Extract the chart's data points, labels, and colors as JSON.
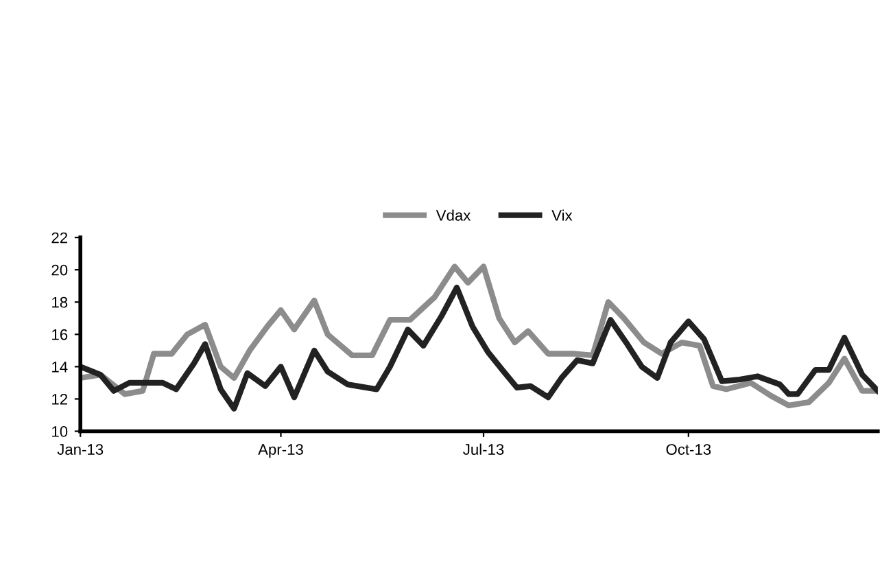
{
  "chart_data": {
    "type": "line",
    "legend": "top",
    "grid": false,
    "marker": "none",
    "line_style": "solid",
    "ylim": [
      10,
      22
    ],
    "yticks": [
      10,
      12,
      14,
      16,
      18,
      20,
      22
    ],
    "xlim": [
      "2013-01-01",
      "2013-12-25"
    ],
    "xticks": [
      {
        "value": "2013-01-01",
        "label": "Jan-13"
      },
      {
        "value": "2013-04-01",
        "label": "Apr-13"
      },
      {
        "value": "2013-07-01",
        "label": "Jul-13"
      },
      {
        "value": "2013-10-01",
        "label": "Oct-13"
      }
    ],
    "series": [
      {
        "name": "Vdax",
        "color": "#8c8c8c",
        "x": [
          "2013-01-01",
          "2013-01-10",
          "2013-01-21",
          "2013-01-29",
          "2013-02-03",
          "2013-02-11",
          "2013-02-18",
          "2013-02-26",
          "2013-03-05",
          "2013-03-11",
          "2013-03-18",
          "2013-03-26",
          "2013-04-01",
          "2013-04-07",
          "2013-04-16",
          "2013-04-22",
          "2013-05-03",
          "2013-05-12",
          "2013-05-20",
          "2013-05-29",
          "2013-06-09",
          "2013-06-18",
          "2013-06-24",
          "2013-07-01",
          "2013-07-08",
          "2013-07-15",
          "2013-07-21",
          "2013-07-30",
          "2013-08-11",
          "2013-08-19",
          "2013-08-26",
          "2013-09-02",
          "2013-09-11",
          "2013-09-19",
          "2013-09-28",
          "2013-10-06",
          "2013-10-12",
          "2013-10-18",
          "2013-10-29",
          "2013-11-07",
          "2013-11-15",
          "2013-11-24",
          "2013-12-03",
          "2013-12-10",
          "2013-12-18",
          "2013-12-25"
        ],
        "values": [
          13.3,
          13.5,
          12.3,
          12.5,
          14.8,
          14.8,
          16,
          16.6,
          14,
          13.3,
          15,
          16.5,
          17.5,
          16.3,
          18.1,
          16,
          14.7,
          14.7,
          16.9,
          16.9,
          18.3,
          20.2,
          19.2,
          20.2,
          17,
          15.5,
          16.2,
          14.8,
          14.8,
          14.7,
          18,
          17,
          15.5,
          14.8,
          15.5,
          15.3,
          12.8,
          12.6,
          13,
          12.2,
          11.6,
          11.8,
          13,
          14.5,
          12.5,
          12.5
        ]
      },
      {
        "name": "Vix",
        "color": "#222222",
        "x": [
          "2013-01-01",
          "2013-01-10",
          "2013-01-16",
          "2013-01-23",
          "2013-02-01",
          "2013-02-07",
          "2013-02-13",
          "2013-02-21",
          "2013-02-26",
          "2013-03-05",
          "2013-03-11",
          "2013-03-17",
          "2013-03-25",
          "2013-04-01",
          "2013-04-07",
          "2013-04-16",
          "2013-04-22",
          "2013-05-01",
          "2013-05-14",
          "2013-05-20",
          "2013-05-28",
          "2013-06-04",
          "2013-06-12",
          "2013-06-19",
          "2013-06-26",
          "2013-07-03",
          "2013-07-10",
          "2013-07-16",
          "2013-07-22",
          "2013-07-30",
          "2013-08-05",
          "2013-08-12",
          "2013-08-19",
          "2013-08-27",
          "2013-09-03",
          "2013-09-10",
          "2013-09-17",
          "2013-09-23",
          "2013-10-01",
          "2013-10-08",
          "2013-10-16",
          "2013-10-24",
          "2013-11-01",
          "2013-11-11",
          "2013-11-15",
          "2013-11-19",
          "2013-11-27",
          "2013-12-03",
          "2013-12-10",
          "2013-12-18",
          "2013-12-25"
        ],
        "values": [
          14,
          13.5,
          12.5,
          13,
          13,
          13,
          12.6,
          14.2,
          15.4,
          12.6,
          11.4,
          13.6,
          12.8,
          14,
          12.1,
          15,
          13.7,
          12.9,
          12.6,
          14,
          16.3,
          15.3,
          17.1,
          18.9,
          16.5,
          14.9,
          13.7,
          12.7,
          12.8,
          12.1,
          13.3,
          14.4,
          14.2,
          16.9,
          15.5,
          14,
          13.3,
          15.5,
          16.8,
          15.7,
          13.1,
          13.2,
          13.4,
          12.9,
          12.3,
          12.3,
          13.8,
          13.8,
          15.8,
          13.5,
          12.5
        ]
      }
    ]
  }
}
